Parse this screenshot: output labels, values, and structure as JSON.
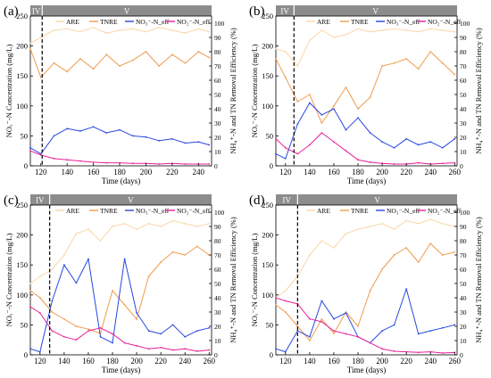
{
  "colors": {
    "are": "#f9d7a8",
    "tnre": "#ef9b4e",
    "no3": "#2748e0",
    "no2": "#e8209a",
    "phase_bar": "#8c8c8c",
    "phase_text": "#ffffff"
  },
  "chart_data": [
    {
      "type": "line",
      "panel_label": "(a)",
      "phases": [
        {
          "label": "IV",
          "x_end": 121
        },
        {
          "label": "V"
        }
      ],
      "xlabel": "Time (days)",
      "ylabel_left": "NOₓ⁻-N Concentration (mg/L)",
      "ylabel_right": "NH₄⁺-N and TN Removal Efficiency (%)",
      "xlim": [
        112,
        250
      ],
      "xticks": [
        120,
        140,
        160,
        180,
        200,
        220,
        240
      ],
      "ylim_left": [
        0,
        250
      ],
      "yticks_left": [
        0,
        50,
        100,
        150,
        200,
        250
      ],
      "ylim_right": [
        0,
        105
      ],
      "yticks_right": [
        0,
        10,
        20,
        30,
        40,
        50,
        60,
        70,
        80,
        90,
        100
      ],
      "phase_line_x": 121,
      "legend": [
        "ARE",
        "TNRE",
        "NO₃⁻-N_eff",
        "NO₂⁻-N_eff"
      ],
      "series": [
        {
          "name": "ARE",
          "axis": "right",
          "x": [
            112,
            120,
            130,
            140,
            150,
            160,
            170,
            180,
            190,
            200,
            210,
            220,
            230,
            240,
            248
          ],
          "y": [
            86,
            90,
            95,
            96,
            94,
            97,
            93,
            95,
            96,
            94,
            97,
            95,
            93,
            96,
            94
          ]
        },
        {
          "name": "TNRE",
          "axis": "right",
          "x": [
            112,
            120,
            130,
            140,
            150,
            160,
            170,
            180,
            190,
            200,
            210,
            220,
            230,
            240,
            248
          ],
          "y": [
            82,
            62,
            72,
            66,
            75,
            68,
            78,
            70,
            74,
            80,
            70,
            78,
            72,
            80,
            76
          ]
        },
        {
          "name": "NO₃⁻-N_eff",
          "axis": "left",
          "x": [
            112,
            120,
            130,
            140,
            150,
            160,
            170,
            180,
            190,
            200,
            210,
            220,
            230,
            240,
            248
          ],
          "y": [
            30,
            20,
            50,
            62,
            58,
            65,
            55,
            60,
            50,
            48,
            42,
            45,
            38,
            40,
            35
          ]
        },
        {
          "name": "NO₂⁻-N_eff",
          "axis": "left",
          "x": [
            112,
            120,
            130,
            140,
            150,
            160,
            170,
            180,
            190,
            200,
            210,
            220,
            230,
            240,
            248
          ],
          "y": [
            25,
            18,
            12,
            10,
            8,
            6,
            5,
            5,
            4,
            4,
            3,
            4,
            3,
            3,
            3
          ]
        }
      ]
    },
    {
      "type": "line",
      "panel_label": "(b)",
      "phases": [
        {
          "label": "IV",
          "x_end": 127
        },
        {
          "label": "V"
        }
      ],
      "xlabel": "Time (days)",
      "ylabel_left": "NOₓ⁻-N Concentration (mg/L)",
      "ylabel_right": "NH₄⁺-N and TN Removal Efficiency (%)",
      "xlim": [
        112,
        262
      ],
      "xticks": [
        120,
        140,
        160,
        180,
        200,
        220,
        240,
        260
      ],
      "ylim_left": [
        0,
        250
      ],
      "yticks_left": [
        0,
        50,
        100,
        150,
        200,
        250
      ],
      "ylim_right": [
        0,
        105
      ],
      "yticks_right": [
        0,
        10,
        20,
        30,
        40,
        50,
        60,
        70,
        80,
        90,
        100
      ],
      "phase_line_x": 127,
      "legend": [
        "ARE",
        "TNRE",
        "NO₃⁻-N_eff",
        "NO₂⁻-N_eff"
      ],
      "series": [
        {
          "name": "ARE",
          "axis": "right",
          "x": [
            112,
            120,
            130,
            140,
            150,
            160,
            170,
            180,
            190,
            200,
            210,
            220,
            230,
            240,
            250,
            260
          ],
          "y": [
            82,
            80,
            70,
            88,
            95,
            90,
            92,
            96,
            94,
            95,
            96,
            95,
            94,
            96,
            95,
            94
          ]
        },
        {
          "name": "TNRE",
          "axis": "right",
          "x": [
            112,
            120,
            130,
            140,
            150,
            160,
            170,
            180,
            190,
            200,
            210,
            220,
            230,
            240,
            250,
            260
          ],
          "y": [
            75,
            62,
            45,
            50,
            30,
            42,
            55,
            40,
            48,
            70,
            72,
            75,
            68,
            80,
            72,
            64
          ]
        },
        {
          "name": "NO₃⁻-N_eff",
          "axis": "left",
          "x": [
            112,
            120,
            130,
            140,
            150,
            160,
            170,
            180,
            190,
            200,
            210,
            220,
            230,
            240,
            250,
            260
          ],
          "y": [
            20,
            12,
            70,
            105,
            85,
            95,
            60,
            80,
            55,
            40,
            30,
            45,
            35,
            40,
            30,
            45
          ]
        },
        {
          "name": "NO₂⁻-N_eff",
          "axis": "left",
          "x": [
            112,
            120,
            130,
            140,
            150,
            160,
            170,
            180,
            190,
            200,
            210,
            220,
            230,
            240,
            250,
            260
          ],
          "y": [
            45,
            30,
            20,
            35,
            55,
            40,
            25,
            10,
            6,
            4,
            3,
            3,
            5,
            3,
            4,
            5
          ]
        }
      ]
    },
    {
      "type": "line",
      "panel_label": "(c)",
      "phases": [
        {
          "label": "IV",
          "x_end": 128
        },
        {
          "label": "V"
        }
      ],
      "xlabel": "Time (days)",
      "ylabel_left": "NOₓ⁻-N Concentration (mg/L)",
      "ylabel_right": "NH₄⁺-N and TN Removal Efficiency (%)",
      "xlim": [
        112,
        262
      ],
      "xticks": [
        120,
        140,
        160,
        180,
        200,
        220,
        240,
        260
      ],
      "ylim_left": [
        0,
        250
      ],
      "yticks_left": [
        0,
        50,
        100,
        150,
        200,
        250
      ],
      "ylim_right": [
        0,
        105
      ],
      "yticks_right": [
        0,
        10,
        20,
        30,
        40,
        50,
        60,
        70,
        80,
        90,
        100
      ],
      "phase_line_x": 128,
      "legend": [
        "ARE",
        "TNRE",
        "NO₃⁻-N_eff",
        "NO₂⁻-N_eff"
      ],
      "series": [
        {
          "name": "ARE",
          "axis": "right",
          "x": [
            112,
            120,
            130,
            140,
            150,
            160,
            170,
            180,
            190,
            200,
            210,
            220,
            230,
            240,
            250,
            260
          ],
          "y": [
            50,
            55,
            60,
            70,
            85,
            88,
            80,
            90,
            92,
            88,
            92,
            90,
            94,
            92,
            90,
            92
          ]
        },
        {
          "name": "TNRE",
          "axis": "right",
          "x": [
            112,
            120,
            130,
            140,
            150,
            160,
            170,
            180,
            190,
            200,
            210,
            220,
            230,
            240,
            250,
            260
          ],
          "y": [
            45,
            40,
            30,
            25,
            20,
            18,
            15,
            45,
            35,
            25,
            55,
            65,
            72,
            70,
            76,
            70
          ]
        },
        {
          "name": "NO₃⁻-N_eff",
          "axis": "left",
          "x": [
            112,
            120,
            130,
            140,
            150,
            160,
            170,
            180,
            190,
            200,
            210,
            220,
            230,
            240,
            250,
            260
          ],
          "y": [
            10,
            5,
            90,
            150,
            120,
            160,
            30,
            20,
            160,
            70,
            40,
            35,
            50,
            30,
            40,
            45
          ]
        },
        {
          "name": "NO₂⁻-N_eff",
          "axis": "left",
          "x": [
            112,
            120,
            130,
            140,
            150,
            160,
            170,
            180,
            190,
            200,
            210,
            220,
            230,
            240,
            250,
            260
          ],
          "y": [
            80,
            70,
            40,
            30,
            25,
            40,
            45,
            35,
            20,
            15,
            10,
            12,
            8,
            10,
            6,
            8
          ]
        }
      ]
    },
    {
      "type": "line",
      "panel_label": "(d)",
      "phases": [
        {
          "label": "IV",
          "x_end": 130
        },
        {
          "label": "V"
        }
      ],
      "xlabel": "Time (days)",
      "ylabel_left": "NOₓ⁻-N Concentration (mg/L)",
      "ylabel_right": "NH₄⁺-N and TN Removal Efficiency (%)",
      "xlim": [
        112,
        262
      ],
      "xticks": [
        120,
        140,
        160,
        180,
        200,
        220,
        240,
        260
      ],
      "ylim_left": [
        0,
        250
      ],
      "yticks_left": [
        0,
        50,
        100,
        150,
        200,
        250
      ],
      "ylim_right": [
        0,
        105
      ],
      "yticks_right": [
        0,
        10,
        20,
        30,
        40,
        50,
        60,
        70,
        80,
        90,
        100
      ],
      "phase_line_x": 130,
      "legend": [
        "ARE",
        "TNRE",
        "NO₃⁻-N_eff",
        "NO₂⁻-N_eff"
      ],
      "series": [
        {
          "name": "ARE",
          "axis": "right",
          "x": [
            112,
            120,
            130,
            140,
            150,
            160,
            170,
            180,
            190,
            200,
            210,
            220,
            230,
            240,
            250,
            260
          ],
          "y": [
            40,
            45,
            55,
            70,
            80,
            75,
            85,
            88,
            90,
            92,
            88,
            94,
            92,
            95,
            92,
            90
          ]
        },
        {
          "name": "TNRE",
          "axis": "right",
          "x": [
            112,
            120,
            130,
            140,
            150,
            160,
            170,
            180,
            190,
            200,
            210,
            220,
            230,
            240,
            250,
            260
          ],
          "y": [
            35,
            30,
            20,
            10,
            25,
            15,
            30,
            20,
            45,
            60,
            70,
            75,
            65,
            78,
            70,
            72
          ]
        },
        {
          "name": "NO₃⁻-N_eff",
          "axis": "left",
          "x": [
            112,
            120,
            130,
            140,
            150,
            160,
            170,
            180,
            190,
            200,
            210,
            220,
            230,
            240,
            250,
            260
          ],
          "y": [
            10,
            5,
            40,
            30,
            90,
            60,
            70,
            30,
            20,
            40,
            50,
            110,
            35,
            40,
            45,
            50
          ]
        },
        {
          "name": "NO₂⁻-N_eff",
          "axis": "left",
          "x": [
            112,
            120,
            130,
            140,
            150,
            160,
            170,
            180,
            190,
            200,
            210,
            220,
            230,
            240,
            250,
            260
          ],
          "y": [
            95,
            90,
            85,
            60,
            55,
            40,
            35,
            30,
            20,
            10,
            6,
            5,
            4,
            5,
            3,
            4
          ]
        }
      ]
    }
  ]
}
